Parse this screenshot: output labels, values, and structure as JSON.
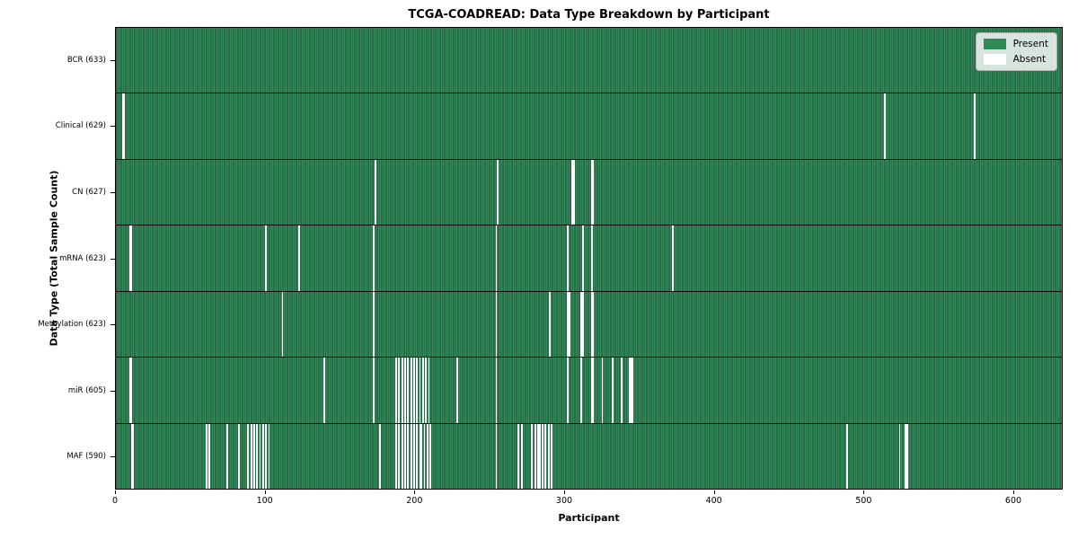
{
  "chart_data": {
    "type": "heatmap",
    "title": "TCGA-COADREAD: Data Type Breakdown by Participant",
    "xlabel": "Participant",
    "ylabel": "Data Type (Total Sample Count)",
    "x_ticks": [
      0,
      100,
      200,
      300,
      400,
      500,
      600
    ],
    "x_max": 633,
    "grid": false,
    "legend_position": "upper right",
    "legend": [
      {
        "label": "Present",
        "color": "#2e8b57"
      },
      {
        "label": "Absent",
        "color": "#ffffff"
      }
    ],
    "colors": {
      "present": "#338a5a",
      "present_edge": "#1b5434",
      "absent": "#ffffff",
      "plot_border": "#000000"
    },
    "rows": [
      {
        "label": "BCR (633)",
        "name": "BCR",
        "total": 633,
        "absent_count": 0,
        "absent": []
      },
      {
        "label": "Clinical (629)",
        "name": "Clinical",
        "total": 629,
        "absent_count": 4,
        "absent": [
          4,
          5,
          514,
          574
        ]
      },
      {
        "label": "CN (627)",
        "name": "CN",
        "total": 627,
        "absent_count": 6,
        "absent": [
          173,
          255,
          305,
          306,
          318,
          319
        ]
      },
      {
        "label": "mRNA (623)",
        "name": "mRNA",
        "total": 623,
        "absent_count": 10,
        "absent": [
          9,
          10,
          100,
          122,
          172,
          254,
          302,
          312,
          318,
          372
        ]
      },
      {
        "label": "Methylation (623)",
        "name": "Methylation",
        "total": 623,
        "absent_count": 10,
        "absent": [
          111,
          172,
          254,
          290,
          302,
          303,
          311,
          312,
          318,
          319
        ]
      },
      {
        "label": "miR (605)",
        "name": "miR",
        "total": 605,
        "absent_count": 28,
        "absent": [
          9,
          10,
          139,
          172,
          187,
          189,
          191,
          193,
          195,
          197,
          199,
          201,
          203,
          205,
          207,
          209,
          228,
          254,
          302,
          311,
          318,
          319,
          325,
          332,
          338,
          343,
          344,
          345
        ]
      },
      {
        "label": "MAF (590)",
        "name": "MAF",
        "total": 590,
        "absent_count": 43,
        "absent": [
          10,
          11,
          60,
          62,
          74,
          82,
          88,
          90,
          92,
          94,
          96,
          98,
          100,
          102,
          176,
          187,
          189,
          191,
          193,
          195,
          197,
          199,
          201,
          203,
          204,
          206,
          208,
          210,
          254,
          269,
          271,
          278,
          280,
          282,
          283,
          285,
          287,
          289,
          291,
          489,
          524,
          528,
          529
        ]
      }
    ]
  }
}
